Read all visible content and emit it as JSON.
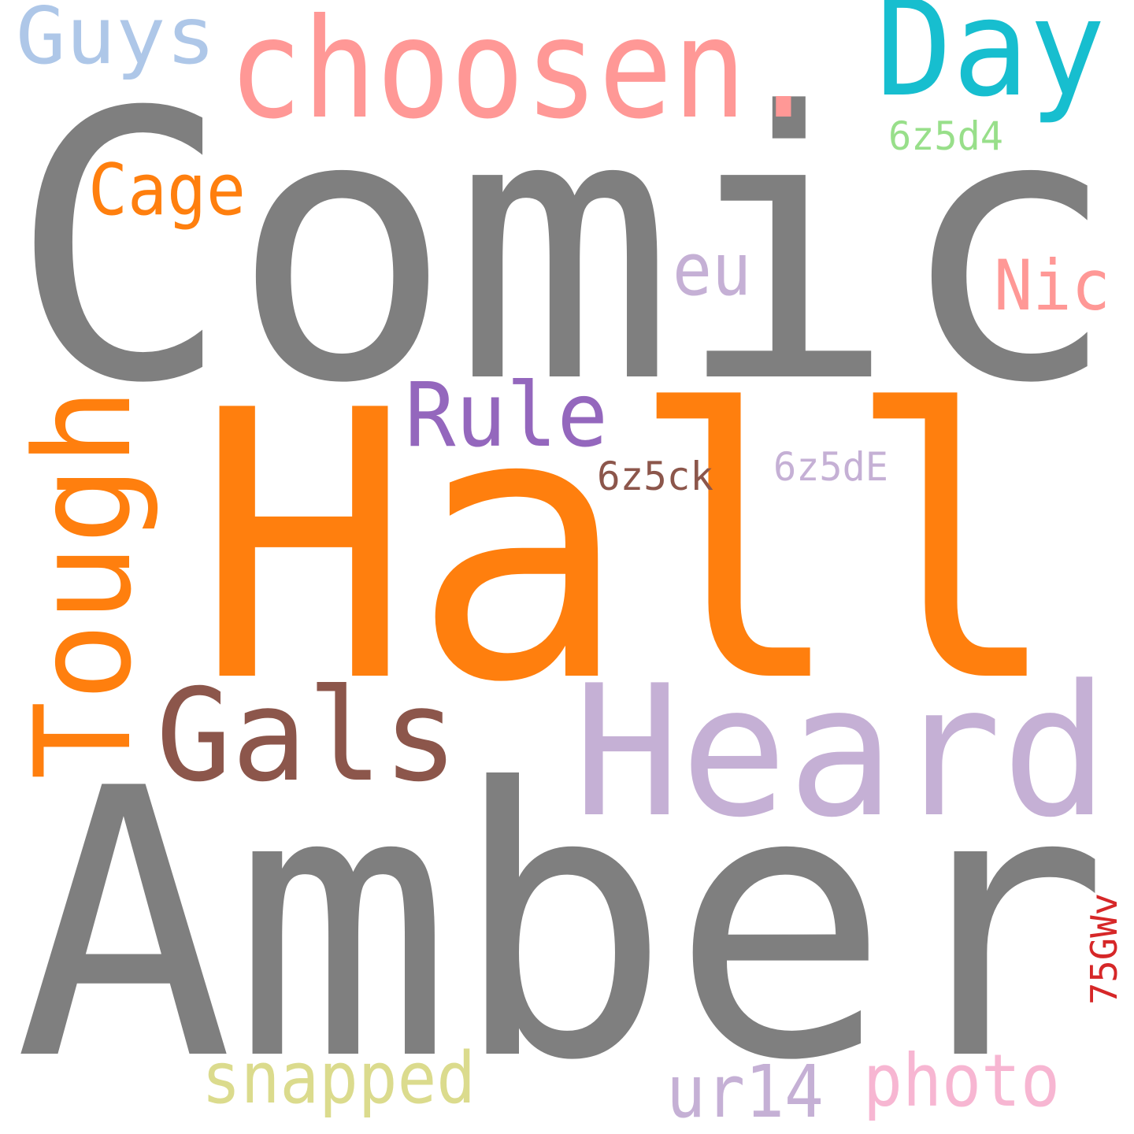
{
  "words": [
    {
      "text": "Comic",
      "color": "#7f7f7f"
    },
    {
      "text": "Hall",
      "color": "#ff7f0e"
    },
    {
      "text": "Amber",
      "color": "#7f7f7f"
    },
    {
      "text": "Heard",
      "color": "#c5b0d5"
    },
    {
      "text": "choosen.",
      "color": "#ff9896"
    },
    {
      "text": "Day",
      "color": "#17becf"
    },
    {
      "text": "Guys",
      "color": "#aec7e8"
    },
    {
      "text": "Tough",
      "color": "#ff7f0e"
    },
    {
      "text": "Gals",
      "color": "#8c564b"
    },
    {
      "text": "Rule",
      "color": "#9467bd"
    },
    {
      "text": "Cage",
      "color": "#ff7f0e"
    },
    {
      "text": "eu",
      "color": "#c5b0d5"
    },
    {
      "text": "Nic",
      "color": "#ff9896"
    },
    {
      "text": "6z5d4",
      "color": "#98df8a"
    },
    {
      "text": "6z5ck",
      "color": "#8c564b"
    },
    {
      "text": "6z5dE",
      "color": "#c5b0d5"
    },
    {
      "text": "snapped",
      "color": "#dbdb8d"
    },
    {
      "text": "ur14",
      "color": "#c5b0d5"
    },
    {
      "text": "photo",
      "color": "#f7b6d2"
    },
    {
      "text": "75GWv",
      "color": "#d62728"
    }
  ]
}
